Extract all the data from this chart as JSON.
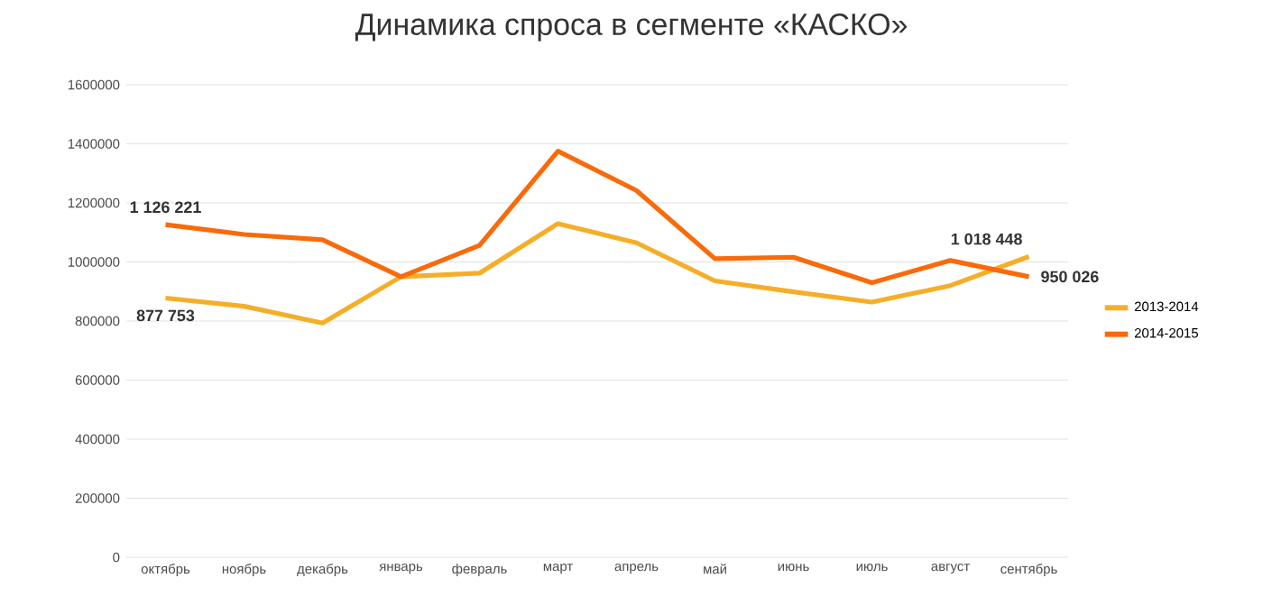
{
  "chart_data": {
    "type": "line",
    "title": "Динамика спроса в сегменте «КАСКО»",
    "categories": [
      "октябрь",
      "ноябрь",
      "декабрь",
      "январь",
      "февраль",
      "март",
      "апрель",
      "май",
      "июнь",
      "июль",
      "август",
      "сентябрь"
    ],
    "series": [
      {
        "name": "2013-2014",
        "color": "#f5ae28",
        "values": [
          877753,
          850000,
          793000,
          950000,
          962000,
          1130000,
          1065000,
          936000,
          899000,
          864000,
          920000,
          1018448
        ],
        "value_labels": [
          "877 753",
          null,
          null,
          null,
          null,
          null,
          null,
          null,
          null,
          null,
          null,
          "1 018 448"
        ]
      },
      {
        "name": "2014-2015",
        "color": "#f96a0a",
        "values": [
          1126221,
          1093000,
          1075000,
          950000,
          1056000,
          1375000,
          1242000,
          1011000,
          1016000,
          930000,
          1005000,
          950026
        ],
        "value_labels": [
          "1 126 221",
          null,
          null,
          null,
          null,
          null,
          null,
          null,
          null,
          null,
          null,
          "950 026"
        ]
      }
    ],
    "ylim": [
      0,
      1600000
    ],
    "yticks": [
      0,
      200000,
      400000,
      600000,
      800000,
      1000000,
      1200000,
      1400000,
      1600000
    ],
    "grid": "y",
    "legend": "right",
    "line_style": "solid",
    "marker": "none"
  }
}
